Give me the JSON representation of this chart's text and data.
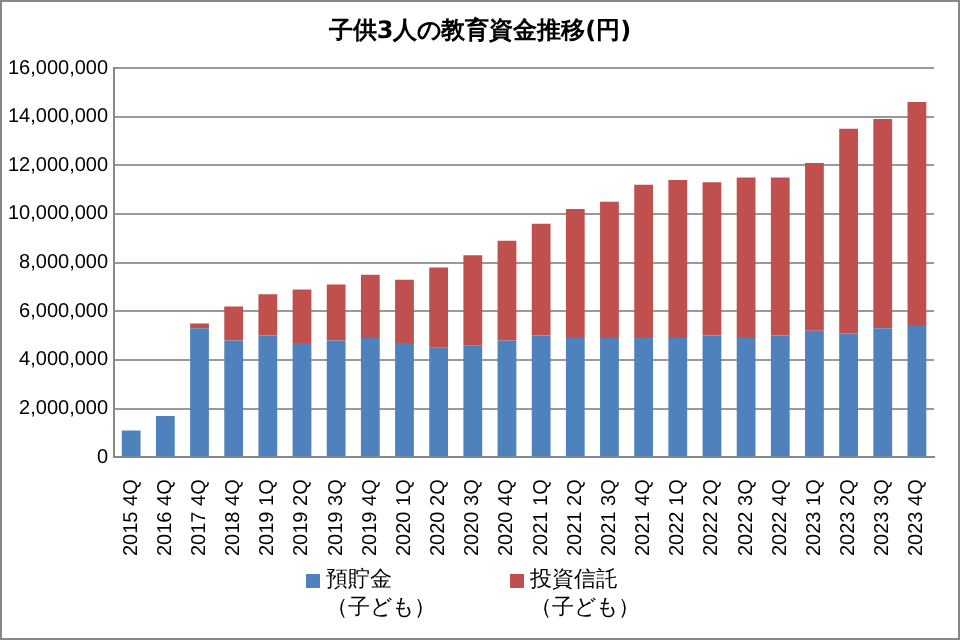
{
  "chart_data": {
    "type": "bar",
    "title": "子供3人の教育資金推移(円)",
    "stacked": true,
    "grid": "y",
    "legend": "bottom",
    "categories": [
      "2015 4Q",
      "2016 4Q",
      "2017 4Q",
      "2018 4Q",
      "2019 1Q",
      "2019 2Q",
      "2019 3Q",
      "2019 4Q",
      "2020 1Q",
      "2020 2Q",
      "2020 3Q",
      "2020 4Q",
      "2021 1Q",
      "2021 2Q",
      "2021 3Q",
      "2021 4Q",
      "2022 1Q",
      "2022 2Q",
      "2022 3Q",
      "2022 4Q",
      "2023 1Q",
      "2023 2Q",
      "2023 3Q",
      "2023 4Q"
    ],
    "ylim": [
      0,
      16000000
    ],
    "yticks": [
      {
        "value": 0,
        "label": "0"
      },
      {
        "value": 2000000,
        "label": "2,000,000"
      },
      {
        "value": 4000000,
        "label": "4,000,000"
      },
      {
        "value": 6000000,
        "label": "6,000,000"
      },
      {
        "value": 8000000,
        "label": "8,000,000"
      },
      {
        "value": 10000000,
        "label": "10,000,000"
      },
      {
        "value": 12000000,
        "label": "12,000,000"
      },
      {
        "value": 14000000,
        "label": "14,000,000"
      },
      {
        "value": 16000000,
        "label": "16,000,000"
      }
    ],
    "series": [
      {
        "name": "預貯金（子ども）",
        "color": "#4f81bd",
        "values": [
          1100000,
          1700000,
          5300000,
          4800000,
          5000000,
          4700000,
          4800000,
          4900000,
          4700000,
          4500000,
          4600000,
          4800000,
          5000000,
          4900000,
          4900000,
          4900000,
          4900000,
          5000000,
          4900000,
          5000000,
          5200000,
          5100000,
          5300000,
          5400000
        ]
      },
      {
        "name": "投資信託（子ども）",
        "color": "#c0504d",
        "values": [
          0,
          0,
          200000,
          1400000,
          1700000,
          2200000,
          2300000,
          2600000,
          2600000,
          3300000,
          3700000,
          4100000,
          4600000,
          5300000,
          5600000,
          6300000,
          6500000,
          6300000,
          6600000,
          6500000,
          6900000,
          8400000,
          8600000,
          9200000
        ]
      }
    ]
  }
}
